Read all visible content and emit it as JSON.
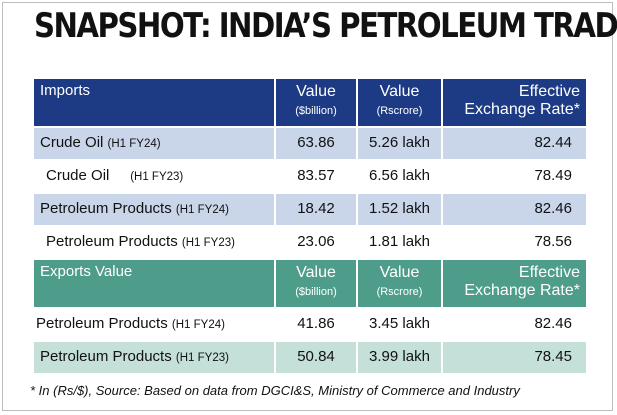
{
  "title": "SNAPSHOT: INDIA’S PETROLEUM TRADE",
  "imports": {
    "header": {
      "label": "Imports",
      "value_usd": "Value",
      "value_usd_unit": "($billion)",
      "value_inr": "Value",
      "value_inr_unit": "(Rscrore)",
      "rate_line1": "Effective",
      "rate_line2": "Exchange Rate*"
    },
    "rows": [
      {
        "name": "Crude Oil",
        "period": "(H1 FY24)",
        "usd": "63.86",
        "inr": "5.26 lakh",
        "rate": "82.44"
      },
      {
        "name": "Crude Oil",
        "period": "(H1 FY23)",
        "usd": "83.57",
        "inr": "6.56 lakh",
        "rate": "78.49"
      },
      {
        "name": "Petroleum Products",
        "period": "(H1 FY24)",
        "usd": "18.42",
        "inr": "1.52 lakh",
        "rate": "82.46"
      },
      {
        "name": "Petroleum Products",
        "period": "(H1 FY23)",
        "usd": "23.06",
        "inr": "1.81 lakh",
        "rate": "78.56"
      }
    ]
  },
  "exports": {
    "header": {
      "label": "Exports Value",
      "value_usd": "Value",
      "value_usd_unit": "($billion)",
      "value_inr": "Value",
      "value_inr_unit": "(Rscrore)",
      "rate_line1": "Effective",
      "rate_line2": "Exchange Rate*"
    },
    "rows": [
      {
        "name": "Petroleum Products",
        "period": "(H1 FY24)",
        "usd": "41.86",
        "inr": "3.45 lakh",
        "rate": "82.46"
      },
      {
        "name": "Petroleum Products",
        "period": "(H1 FY23)",
        "usd": "50.84",
        "inr": "3.99 lakh",
        "rate": "78.45"
      }
    ]
  },
  "footnote": "* In (Rs/$), Source: Based on data from DGCI&S, Ministry of Commerce and Industry",
  "colors": {
    "imports_header": "#1d3b84",
    "imports_row_shade": "#c9d6ea",
    "exports_header": "#4e9d8b",
    "exports_row_shade": "#c4e0d8"
  }
}
